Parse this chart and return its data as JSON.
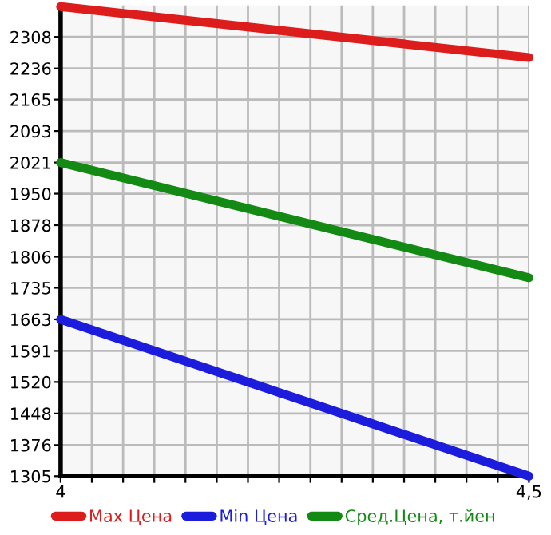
{
  "chart_data": {
    "type": "line",
    "x": [
      4,
      4.5
    ],
    "series": [
      {
        "name": "Max Цена",
        "color": "#dd1c1c",
        "values": [
          2377,
          2261
        ]
      },
      {
        "name": "Min Цена",
        "color": "#1c1cdd",
        "values": [
          1663,
          1305
        ]
      },
      {
        "name": "Сред.Цена, т.йен",
        "color": "#138a13",
        "values": [
          2021,
          1758
        ]
      }
    ],
    "xlim": [
      4,
      4.5
    ],
    "xticks": [
      4,
      {
        "value": 4.0333,
        "label": null
      },
      {
        "value": 4.0667,
        "label": null
      },
      {
        "value": 4.1,
        "label": null
      },
      {
        "value": 4.1333,
        "label": null
      },
      {
        "value": 4.1667,
        "label": null
      },
      {
        "value": 4.2,
        "label": null
      },
      {
        "value": 4.2333,
        "label": null
      },
      {
        "value": 4.2667,
        "label": null
      },
      {
        "value": 4.3,
        "label": null
      },
      {
        "value": 4.3333,
        "label": null
      },
      {
        "value": 4.3667,
        "label": null
      },
      {
        "value": 4.4,
        "label": null
      },
      {
        "value": 4.4333,
        "label": null
      },
      {
        "value": 4.4667,
        "label": null
      },
      {
        "value": 4.5,
        "label": "4,5"
      }
    ],
    "ylim": [
      1305,
      2380
    ],
    "yticks": [
      1305,
      1376,
      1448,
      1520,
      1591,
      1663,
      1735,
      1806,
      1878,
      1950,
      2021,
      2093,
      2165,
      2236,
      2308
    ],
    "grid": true,
    "legend": "bottom",
    "marker": "none",
    "line_style": "solid"
  }
}
